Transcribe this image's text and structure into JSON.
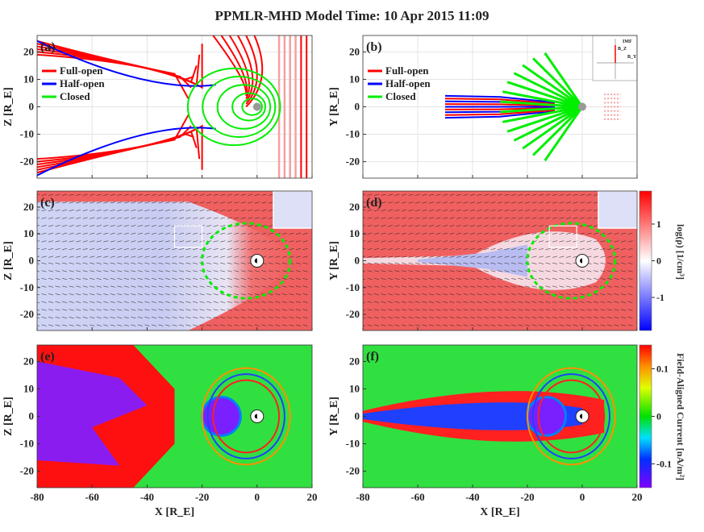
{
  "title": "PPMLR-MHD Model    Time: 10 Apr 2015 11:09",
  "colors": {
    "full_open": "#ff0000",
    "half_open": "#0000ff",
    "closed": "#00ee00",
    "pink": "#f4a0a0"
  },
  "chart_data": [
    {
      "id": "a",
      "type": "line",
      "label": "(a)",
      "ylabel": "Z [R_E]",
      "xlabel": "",
      "xlim": [
        -80,
        20
      ],
      "ylim": [
        -26,
        26
      ],
      "xticks": [
        -80,
        -60,
        -40,
        -20,
        0,
        20
      ],
      "yticks": [
        -20,
        -10,
        0,
        10,
        20
      ],
      "legend": [
        "Full-open",
        "Half-open",
        "Closed"
      ],
      "legend_placement": "left"
    },
    {
      "id": "b",
      "type": "line",
      "label": "(b)",
      "ylabel": "Y [R_E]",
      "xlabel": "",
      "xlim": [
        -80,
        20
      ],
      "ylim": [
        -26,
        26
      ],
      "xticks": [
        -80,
        -60,
        -40,
        -20,
        0,
        20
      ],
      "yticks": [
        -20,
        -10,
        0,
        10,
        20
      ],
      "legend": [
        "Full-open",
        "Half-open",
        "Closed"
      ],
      "legend_placement": "left",
      "inset": {
        "title": "IMF",
        "labels": [
          "B_Z",
          "B_Y"
        ],
        "ticks": [
          "-20",
          "-10",
          "0",
          "10",
          "20",
          "-10",
          "-20",
          "10",
          "20"
        ]
      }
    },
    {
      "id": "c",
      "type": "heatmap",
      "label": "(c)",
      "ylabel": "Z [R_E]",
      "xlabel": "",
      "xlim": [
        -80,
        20
      ],
      "ylim": [
        -26,
        26
      ],
      "xticks": [
        -80,
        -60,
        -40,
        -20,
        0,
        20
      ],
      "yticks": [
        -20,
        -10,
        0,
        10,
        20
      ]
    },
    {
      "id": "d",
      "type": "heatmap",
      "label": "(d)",
      "ylabel": "Y [R_E]",
      "xlabel": "",
      "xlim": [
        -80,
        20
      ],
      "ylim": [
        -26,
        26
      ],
      "xticks": [
        -80,
        -60,
        -40,
        -20,
        0,
        20
      ],
      "yticks": [
        -20,
        -10,
        0,
        10,
        20
      ]
    },
    {
      "id": "e",
      "type": "heatmap",
      "label": "(e)",
      "ylabel": "Z [R_E]",
      "xlabel": "X [R_E]",
      "xlim": [
        -80,
        20
      ],
      "ylim": [
        -26,
        26
      ],
      "xticks": [
        -80,
        -60,
        -40,
        -20,
        0,
        20
      ],
      "yticks": [
        -20,
        -10,
        0,
        10,
        20
      ]
    },
    {
      "id": "f",
      "type": "heatmap",
      "label": "(f)",
      "ylabel": "Y [R_E]",
      "xlabel": "X [R_E]",
      "xlim": [
        -80,
        20
      ],
      "ylim": [
        -26,
        26
      ],
      "xticks": [
        -80,
        -60,
        -40,
        -20,
        0,
        20
      ],
      "yticks": [
        -20,
        -10,
        0,
        10,
        20
      ]
    }
  ],
  "colorbars": [
    {
      "label": "log(ρ) [1/cm³]",
      "ticks": [
        "1",
        "0",
        "-1"
      ],
      "tick_values": [
        1,
        0,
        -1
      ],
      "range": [
        -1.9,
        1.9
      ]
    },
    {
      "label": "Field-Aligned Current [nA/m²]",
      "ticks": [
        "0.1",
        "0",
        "-0.1"
      ],
      "tick_values": [
        0.1,
        0,
        -0.1
      ],
      "range": [
        -0.15,
        0.15
      ]
    }
  ]
}
